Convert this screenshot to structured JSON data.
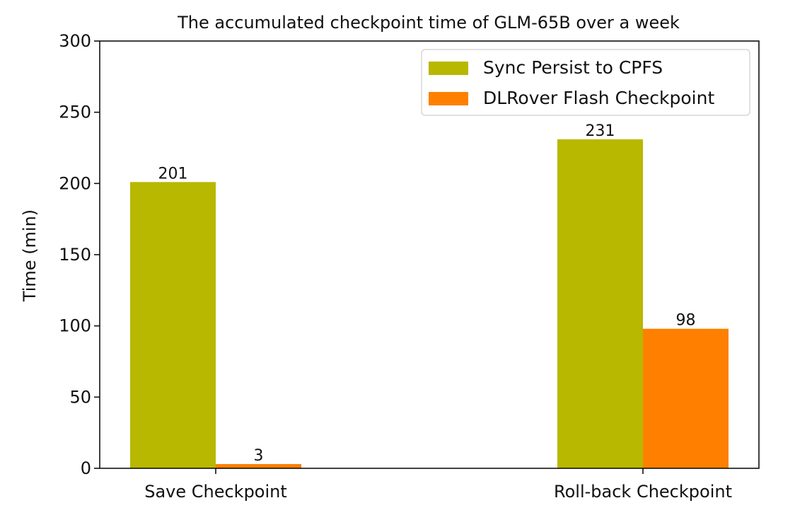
{
  "chart_data": {
    "type": "bar",
    "title": "The accumulated checkpoint time of GLM-65B over a week",
    "xlabel": "",
    "ylabel": "Time (min)",
    "categories": [
      "Save Checkpoint",
      "Roll-back Checkpoint"
    ],
    "series": [
      {
        "name": "Sync Persist to CPFS",
        "color": "#b8b800",
        "values": [
          201,
          231
        ]
      },
      {
        "name": "DLRover Flash Checkpoint",
        "color": "#ff8000",
        "values": [
          3,
          98
        ]
      }
    ],
    "ylim": [
      0,
      300
    ],
    "yticks": [
      0,
      50,
      100,
      150,
      200,
      250,
      300
    ],
    "grid": false,
    "legend_position": "top-right"
  }
}
